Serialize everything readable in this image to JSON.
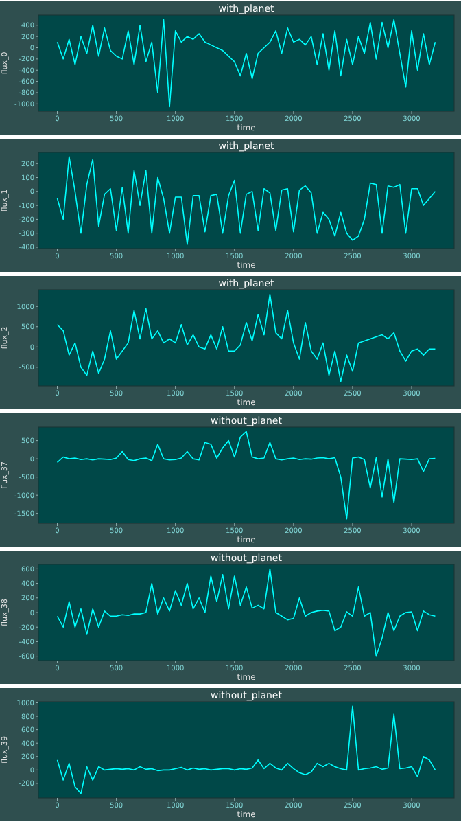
{
  "chart_data": [
    {
      "type": "line",
      "title": "with_planet",
      "xlabel": "time",
      "ylabel": "flux_0",
      "color": "#00ffff",
      "xlim": [
        -160,
        3360
      ],
      "xticks": [
        0,
        500,
        1000,
        1500,
        2000,
        2500,
        3000
      ],
      "ylim": [
        -1130,
        580
      ],
      "yticks": [
        -1000,
        -800,
        -600,
        -400,
        -200,
        0,
        200,
        400
      ],
      "x": [
        0,
        50,
        100,
        150,
        200,
        250,
        300,
        350,
        400,
        450,
        500,
        550,
        600,
        650,
        700,
        750,
        800,
        850,
        900,
        950,
        1000,
        1050,
        1100,
        1150,
        1200,
        1250,
        1300,
        1350,
        1400,
        1450,
        1500,
        1550,
        1600,
        1650,
        1700,
        1750,
        1800,
        1850,
        1900,
        1950,
        2000,
        2050,
        2100,
        2150,
        2200,
        2250,
        2300,
        2350,
        2400,
        2450,
        2500,
        2550,
        2600,
        2650,
        2700,
        2750,
        2800,
        2850,
        2900,
        2950,
        3000,
        3050,
        3100,
        3150,
        3200
      ],
      "values": [
        100,
        -200,
        150,
        -300,
        200,
        -100,
        400,
        -150,
        350,
        -50,
        -150,
        -200,
        300,
        -300,
        400,
        -250,
        100,
        -800,
        500,
        -1050,
        300,
        100,
        200,
        150,
        250,
        100,
        50,
        0,
        -50,
        -150,
        -250,
        -500,
        -100,
        -550,
        -100,
        0,
        100,
        300,
        -100,
        350,
        100,
        150,
        50,
        200,
        -300,
        250,
        -400,
        300,
        -500,
        150,
        -300,
        200,
        -100,
        450,
        -200,
        450,
        0,
        500,
        -100,
        -700,
        300,
        -400,
        250,
        -300,
        100
      ]
    },
    {
      "type": "line",
      "title": "with_planet",
      "xlabel": "time",
      "ylabel": "flux_1",
      "color": "#00ffff",
      "xlim": [
        -160,
        3360
      ],
      "xticks": [
        0,
        500,
        1000,
        1500,
        2000,
        2500,
        3000
      ],
      "ylim": [
        -410,
        280
      ],
      "yticks": [
        -400,
        -300,
        -200,
        -100,
        0,
        100,
        200
      ],
      "x": [
        0,
        50,
        100,
        150,
        200,
        250,
        300,
        350,
        400,
        450,
        500,
        550,
        600,
        650,
        700,
        750,
        800,
        850,
        900,
        950,
        1000,
        1050,
        1100,
        1150,
        1200,
        1250,
        1300,
        1350,
        1400,
        1450,
        1500,
        1550,
        1600,
        1650,
        1700,
        1750,
        1800,
        1850,
        1900,
        1950,
        2000,
        2050,
        2100,
        2150,
        2200,
        2250,
        2300,
        2350,
        2400,
        2450,
        2500,
        2550,
        2600,
        2650,
        2700,
        2750,
        2800,
        2850,
        2900,
        2950,
        3000,
        3050,
        3100,
        3150,
        3200
      ],
      "values": [
        -50,
        -200,
        250,
        0,
        -300,
        50,
        230,
        -250,
        -20,
        20,
        -280,
        30,
        -300,
        150,
        -100,
        150,
        -300,
        100,
        -50,
        -300,
        -40,
        -40,
        -380,
        -30,
        -30,
        -290,
        -30,
        -20,
        -300,
        -30,
        80,
        -300,
        -20,
        0,
        -280,
        20,
        -10,
        -280,
        10,
        20,
        -290,
        10,
        40,
        -10,
        -300,
        -150,
        -200,
        -320,
        -150,
        -300,
        -350,
        -320,
        -200,
        60,
        50,
        -300,
        40,
        30,
        50,
        -300,
        20,
        20,
        -100,
        -50,
        0
      ]
    },
    {
      "type": "line",
      "title": "with_planet",
      "xlabel": "time",
      "ylabel": "flux_2",
      "color": "#00ffff",
      "xlim": [
        -160,
        3360
      ],
      "xticks": [
        0,
        500,
        1000,
        1500,
        2000,
        2500,
        3000
      ],
      "ylim": [
        -960,
        1410
      ],
      "yticks": [
        -500,
        0,
        500,
        1000
      ],
      "x": [
        0,
        50,
        100,
        150,
        200,
        250,
        300,
        350,
        400,
        450,
        500,
        550,
        600,
        650,
        700,
        750,
        800,
        850,
        900,
        950,
        1000,
        1050,
        1100,
        1150,
        1200,
        1250,
        1300,
        1350,
        1400,
        1450,
        1500,
        1550,
        1600,
        1650,
        1700,
        1750,
        1800,
        1850,
        1900,
        1950,
        2000,
        2050,
        2100,
        2150,
        2200,
        2250,
        2300,
        2350,
        2400,
        2450,
        2500,
        2550,
        2600,
        2650,
        2700,
        2750,
        2800,
        2850,
        2900,
        2950,
        3000,
        3050,
        3100,
        3150,
        3200
      ],
      "values": [
        550,
        400,
        -200,
        100,
        -500,
        -700,
        -100,
        -650,
        -300,
        400,
        -300,
        -100,
        100,
        900,
        200,
        950,
        200,
        400,
        100,
        200,
        100,
        550,
        50,
        300,
        0,
        -50,
        300,
        -50,
        500,
        -100,
        -100,
        50,
        600,
        150,
        800,
        300,
        1300,
        350,
        200,
        900,
        100,
        -300,
        600,
        -100,
        -300,
        100,
        -700,
        -100,
        -850,
        -200,
        -600,
        100,
        150,
        200,
        250,
        300,
        200,
        350,
        -100,
        -350,
        -100,
        -50,
        -200,
        -50,
        -50
      ]
    },
    {
      "type": "line",
      "title": "without_planet",
      "xlabel": "time",
      "ylabel": "flux_37",
      "color": "#00ffff",
      "xlim": [
        -160,
        3360
      ],
      "xticks": [
        0,
        500,
        1000,
        1500,
        2000,
        2500,
        3000
      ],
      "ylim": [
        -1770,
        870
      ],
      "yticks": [
        -1500,
        -1000,
        -500,
        0,
        500
      ],
      "x": [
        0,
        50,
        100,
        150,
        200,
        250,
        300,
        350,
        400,
        450,
        500,
        550,
        600,
        650,
        700,
        750,
        800,
        850,
        900,
        950,
        1000,
        1050,
        1100,
        1150,
        1200,
        1250,
        1300,
        1350,
        1400,
        1450,
        1500,
        1550,
        1600,
        1650,
        1700,
        1750,
        1800,
        1850,
        1900,
        1950,
        2000,
        2050,
        2100,
        2150,
        2200,
        2250,
        2300,
        2350,
        2400,
        2450,
        2500,
        2550,
        2600,
        2650,
        2700,
        2750,
        2800,
        2850,
        2900,
        2950,
        3000,
        3050,
        3100,
        3150,
        3200
      ],
      "values": [
        -100,
        50,
        0,
        20,
        -20,
        0,
        -30,
        0,
        -10,
        -20,
        20,
        200,
        -20,
        -50,
        0,
        20,
        -50,
        400,
        0,
        -30,
        -20,
        20,
        200,
        0,
        -30,
        450,
        400,
        20,
        300,
        500,
        50,
        600,
        750,
        50,
        0,
        20,
        450,
        0,
        -30,
        0,
        20,
        -20,
        0,
        -10,
        20,
        30,
        0,
        30,
        -500,
        -1650,
        20,
        50,
        -20,
        -800,
        30,
        -1050,
        -10,
        -1200,
        0,
        -10,
        -20,
        0,
        -350,
        0,
        10
      ]
    },
    {
      "type": "line",
      "title": "without_planet",
      "xlabel": "time",
      "ylabel": "flux_38",
      "color": "#00ffff",
      "xlim": [
        -160,
        3360
      ],
      "xticks": [
        0,
        500,
        1000,
        1500,
        2000,
        2500,
        3000
      ],
      "ylim": [
        -660,
        660
      ],
      "yticks": [
        -600,
        -400,
        -200,
        0,
        200,
        400,
        600
      ],
      "x": [
        0,
        50,
        100,
        150,
        200,
        250,
        300,
        350,
        400,
        450,
        500,
        550,
        600,
        650,
        700,
        750,
        800,
        850,
        900,
        950,
        1000,
        1050,
        1100,
        1150,
        1200,
        1250,
        1300,
        1350,
        1400,
        1450,
        1500,
        1550,
        1600,
        1650,
        1700,
        1750,
        1800,
        1850,
        1900,
        1950,
        2000,
        2050,
        2100,
        2150,
        2200,
        2250,
        2300,
        2350,
        2400,
        2450,
        2500,
        2550,
        2600,
        2650,
        2700,
        2750,
        2800,
        2850,
        2900,
        2950,
        3000,
        3050,
        3100,
        3150,
        3200
      ],
      "values": [
        -50,
        -200,
        150,
        -200,
        50,
        -300,
        50,
        -200,
        20,
        -50,
        -50,
        -30,
        -40,
        -20,
        -20,
        0,
        400,
        -20,
        200,
        20,
        300,
        100,
        400,
        50,
        200,
        0,
        500,
        150,
        520,
        50,
        500,
        100,
        350,
        60,
        100,
        50,
        600,
        0,
        -50,
        -100,
        -80,
        200,
        -50,
        0,
        20,
        30,
        20,
        -250,
        -200,
        10,
        -50,
        350,
        -50,
        0,
        -600,
        -350,
        0,
        -250,
        -50,
        0,
        10,
        -250,
        20,
        -30,
        -50
      ]
    },
    {
      "type": "line",
      "title": "without_planet",
      "xlabel": "time",
      "ylabel": "flux_39",
      "color": "#00ffff",
      "xlim": [
        -160,
        3360
      ],
      "xticks": [
        0,
        500,
        1000,
        1500,
        2000,
        2500,
        3000
      ],
      "ylim": [
        -415,
        1015
      ],
      "yticks": [
        -200,
        0,
        200,
        400,
        600,
        800,
        1000
      ],
      "x": [
        0,
        50,
        100,
        150,
        200,
        250,
        300,
        350,
        400,
        450,
        500,
        550,
        600,
        650,
        700,
        750,
        800,
        850,
        900,
        950,
        1000,
        1050,
        1100,
        1150,
        1200,
        1250,
        1300,
        1350,
        1400,
        1450,
        1500,
        1550,
        1600,
        1650,
        1700,
        1750,
        1800,
        1850,
        1900,
        1950,
        2000,
        2050,
        2100,
        2150,
        2200,
        2250,
        2300,
        2350,
        2400,
        2450,
        2500,
        2550,
        2600,
        2650,
        2700,
        2750,
        2800,
        2850,
        2900,
        2950,
        3000,
        3050,
        3100,
        3150,
        3200
      ],
      "values": [
        150,
        -150,
        100,
        -250,
        -350,
        50,
        -150,
        50,
        0,
        10,
        20,
        10,
        20,
        0,
        50,
        10,
        20,
        -10,
        0,
        0,
        20,
        40,
        0,
        30,
        10,
        20,
        0,
        10,
        20,
        20,
        0,
        20,
        10,
        30,
        150,
        20,
        100,
        30,
        0,
        100,
        20,
        -40,
        -70,
        -30,
        100,
        50,
        100,
        50,
        20,
        0,
        950,
        0,
        20,
        30,
        50,
        10,
        30,
        830,
        20,
        30,
        50,
        -100,
        200,
        150,
        0
      ]
    }
  ]
}
